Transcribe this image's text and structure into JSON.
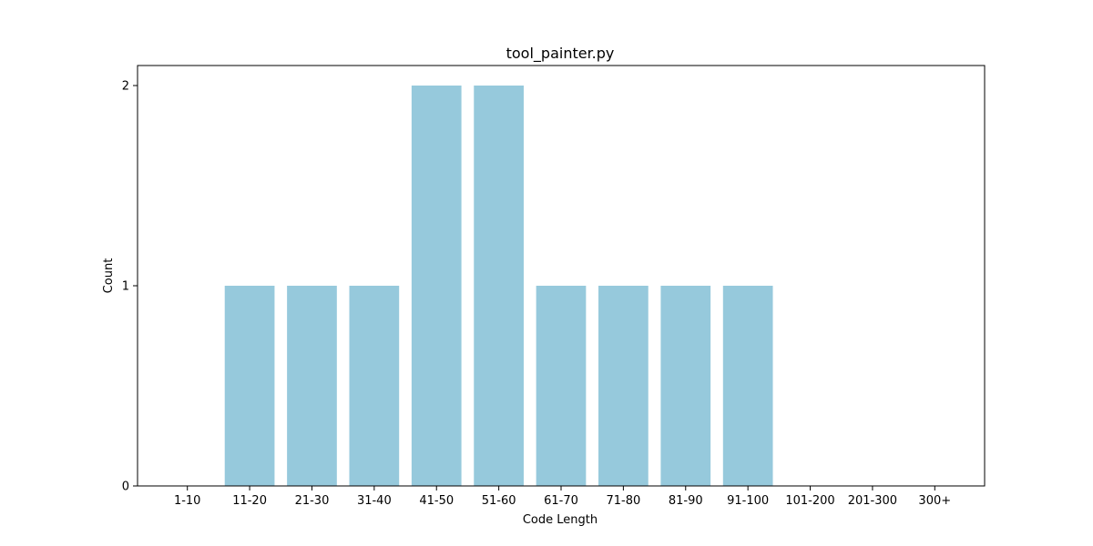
{
  "chart_data": {
    "type": "bar",
    "title": "tool_painter.py",
    "xlabel": "Code Length",
    "ylabel": "Count",
    "categories": [
      "1-10",
      "11-20",
      "21-30",
      "31-40",
      "41-50",
      "51-60",
      "61-70",
      "71-80",
      "81-90",
      "91-100",
      "101-200",
      "201-300",
      "300+"
    ],
    "values": [
      0,
      1,
      1,
      1,
      2,
      2,
      1,
      1,
      1,
      1,
      0,
      0,
      0
    ],
    "ylim": [
      0,
      2.1
    ],
    "yticks": [
      0,
      1,
      2
    ],
    "grid": false,
    "bar_color": "#96c9dc"
  }
}
